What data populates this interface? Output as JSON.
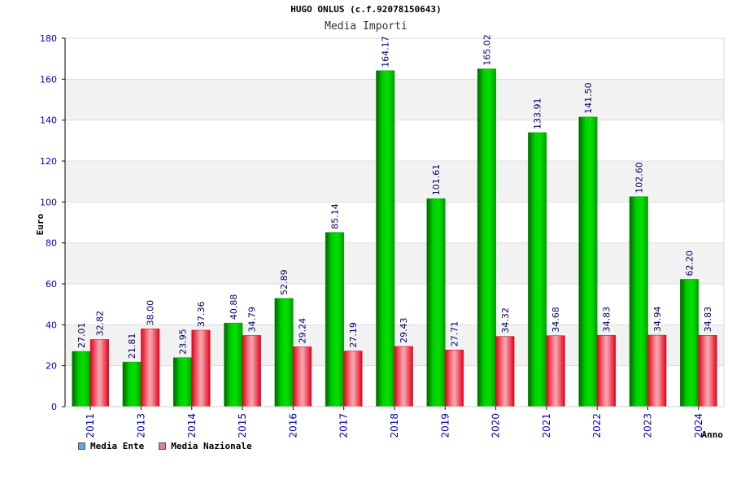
{
  "title": "HUGO ONLUS (c.f.92078150643)",
  "subtitle": "Media Importi",
  "legend": {
    "series1": "Media Ente",
    "series2": "Media Nazionale",
    "series1_swatch": "#6ba3e0",
    "series2_swatch": "#e07ab0"
  },
  "chart_data": {
    "type": "bar",
    "xlabel": "Anno",
    "ylabel": "Euro",
    "ylim": [
      0,
      180
    ],
    "yticks": [
      0,
      20,
      40,
      60,
      80,
      100,
      120,
      140,
      160,
      180
    ],
    "grid": true,
    "categories": [
      "2011",
      "2013",
      "2014",
      "2015",
      "2016",
      "2017",
      "2018",
      "2019",
      "2020",
      "2021",
      "2022",
      "2023",
      "2024"
    ],
    "series": [
      {
        "name": "Media Ente",
        "color": "#00c000",
        "values": [
          27.01,
          21.81,
          23.95,
          40.88,
          52.89,
          85.14,
          164.17,
          101.61,
          165.02,
          133.91,
          141.5,
          102.6,
          62.2
        ],
        "labels": [
          "27.01",
          "21.81",
          "23.95",
          "40.88",
          "52.89",
          "85.14",
          "164.17",
          "101.61",
          "165.02",
          "133.91",
          "141.50",
          "102.60",
          "62.20"
        ]
      },
      {
        "name": "Media Nazionale",
        "color": "#e8001c",
        "values": [
          32.82,
          38.0,
          37.36,
          34.79,
          29.24,
          27.19,
          29.43,
          27.71,
          34.32,
          34.68,
          34.83,
          34.94,
          34.83
        ],
        "labels": [
          "32.82",
          "38.00",
          "37.36",
          "34.79",
          "29.24",
          "27.19",
          "29.43",
          "27.71",
          "34.32",
          "34.68",
          "34.83",
          "34.94",
          "34.83"
        ]
      }
    ]
  }
}
